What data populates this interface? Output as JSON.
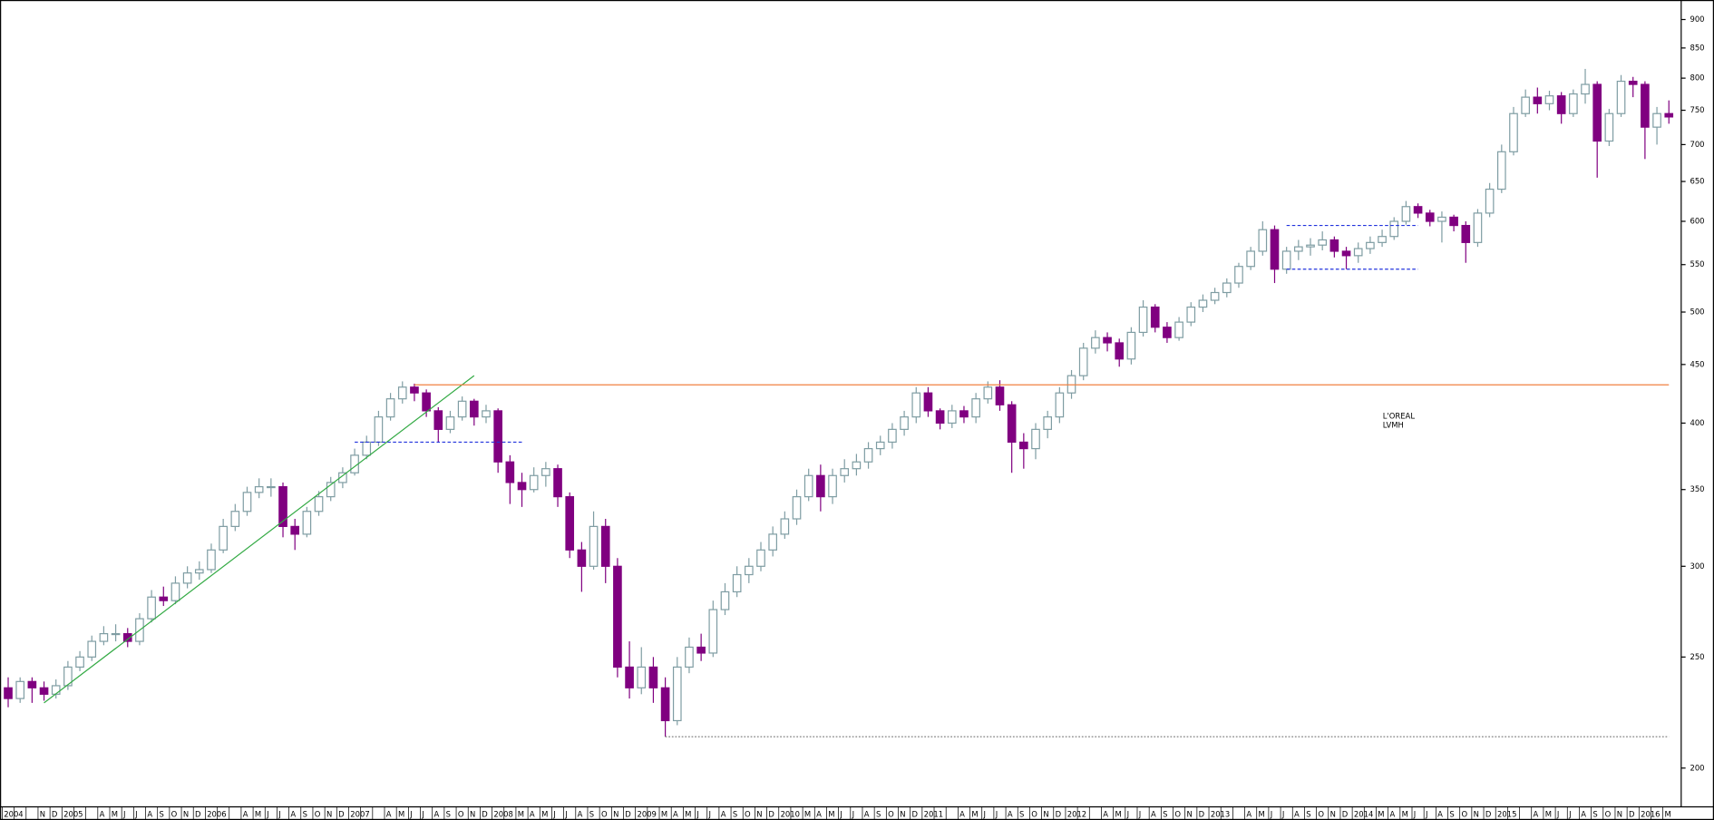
{
  "chart_data": {
    "type": "candlestick",
    "title_lines": [
      "L'OREAL",
      "LVMH"
    ],
    "categories": [
      "2004",
      null,
      null,
      "N",
      "D",
      "2005",
      null,
      null,
      "A",
      "M",
      "J",
      "J",
      "A",
      "S",
      "O",
      "N",
      "D",
      "2006",
      null,
      null,
      "A",
      "M",
      "J",
      "J",
      "A",
      "S",
      "O",
      "N",
      "D",
      "2007",
      null,
      null,
      "A",
      "M",
      "J",
      "J",
      "A",
      "S",
      "O",
      "N",
      "D",
      "2008",
      null,
      "M",
      "A",
      "M",
      "J",
      "J",
      "A",
      "S",
      "O",
      "N",
      "D",
      "2009",
      null,
      "M",
      "A",
      "M",
      "J",
      "J",
      "A",
      "S",
      "O",
      "N",
      "D",
      "2010",
      null,
      "M",
      "A",
      "M",
      "J",
      "J",
      "A",
      "S",
      "O",
      "N",
      "D",
      "2011",
      null,
      null,
      "A",
      "M",
      "J",
      "J",
      "A",
      "S",
      "O",
      "N",
      "D",
      "2012",
      null,
      null,
      "A",
      "M",
      "J",
      "J",
      "A",
      "S",
      "O",
      "N",
      "D",
      "2013",
      null,
      null,
      "A",
      "M",
      "J",
      "J",
      "A",
      "S",
      "O",
      "N",
      "D",
      "2014",
      null,
      "M",
      "A",
      "M",
      "J",
      "J",
      "A",
      "S",
      "O",
      "N",
      "D",
      "2015",
      null,
      null,
      "A",
      "M",
      "J",
      "J",
      "A",
      "S",
      "O",
      "N",
      "D",
      "2016",
      null,
      "M"
    ],
    "open": [
      235,
      230,
      238,
      235,
      232,
      236,
      245,
      250,
      258,
      262,
      262,
      258,
      270,
      282,
      280,
      290,
      296,
      298,
      310,
      325,
      335,
      348,
      352,
      352,
      325,
      320,
      335,
      345,
      355,
      362,
      375,
      385,
      405,
      420,
      430,
      425,
      410,
      395,
      405,
      418,
      405,
      410,
      370,
      355,
      350,
      360,
      365,
      345,
      310,
      300,
      325,
      300,
      245,
      235,
      245,
      235,
      220,
      245,
      255,
      252,
      275,
      285,
      295,
      300,
      310,
      320,
      330,
      345,
      360,
      345,
      360,
      365,
      370,
      380,
      385,
      395,
      405,
      425,
      410,
      400,
      410,
      405,
      420,
      430,
      415,
      385,
      380,
      395,
      405,
      425,
      440,
      465,
      475,
      470,
      455,
      480,
      505,
      485,
      475,
      490,
      505,
      512,
      520,
      530,
      548,
      565,
      590,
      545,
      565,
      570,
      572,
      578,
      565,
      560,
      568,
      575,
      582,
      600,
      618,
      610,
      600,
      605,
      595,
      575,
      610,
      640,
      690,
      745,
      770,
      760,
      772,
      745,
      775,
      790,
      705,
      745,
      795,
      790,
      725,
      745
    ],
    "high": [
      240,
      240,
      240,
      238,
      239,
      248,
      253,
      261,
      266,
      267,
      265,
      273,
      286,
      288,
      294,
      300,
      303,
      314,
      330,
      340,
      352,
      358,
      358,
      355,
      330,
      338,
      349,
      359,
      366,
      380,
      390,
      410,
      425,
      435,
      433,
      428,
      413,
      410,
      422,
      420,
      415,
      412,
      375,
      362,
      366,
      370,
      368,
      348,
      315,
      335,
      330,
      305,
      258,
      255,
      250,
      240,
      250,
      260,
      262,
      280,
      290,
      300,
      305,
      315,
      325,
      335,
      350,
      365,
      368,
      365,
      372,
      376,
      385,
      390,
      400,
      410,
      430,
      430,
      412,
      415,
      414,
      425,
      435,
      436,
      418,
      392,
      400,
      410,
      430,
      445,
      470,
      482,
      480,
      474,
      485,
      512,
      508,
      490,
      495,
      510,
      518,
      525,
      535,
      552,
      570,
      600,
      595,
      570,
      578,
      580,
      588,
      582,
      570,
      575,
      582,
      590,
      605,
      625,
      622,
      614,
      612,
      608,
      600,
      615,
      648,
      700,
      755,
      782,
      785,
      780,
      778,
      782,
      815,
      795,
      752,
      805,
      802,
      795,
      755,
      765
    ],
    "low": [
      226,
      228,
      228,
      229,
      230,
      234,
      243,
      248,
      256,
      258,
      255,
      256,
      268,
      277,
      278,
      287,
      292,
      296,
      308,
      322,
      332,
      344,
      345,
      318,
      310,
      318,
      332,
      342,
      351,
      360,
      372,
      382,
      402,
      416,
      418,
      405,
      385,
      392,
      402,
      398,
      400,
      362,
      340,
      338,
      348,
      352,
      338,
      305,
      285,
      298,
      290,
      240,
      230,
      232,
      228,
      213,
      218,
      242,
      248,
      250,
      272,
      282,
      290,
      297,
      306,
      317,
      326,
      342,
      335,
      340,
      355,
      360,
      365,
      375,
      380,
      390,
      400,
      405,
      395,
      396,
      400,
      400,
      416,
      410,
      362,
      365,
      372,
      388,
      400,
      420,
      436,
      460,
      462,
      448,
      450,
      476,
      480,
      470,
      472,
      486,
      500,
      508,
      515,
      525,
      544,
      560,
      530,
      540,
      555,
      560,
      566,
      558,
      545,
      552,
      562,
      570,
      578,
      596,
      604,
      594,
      575,
      588,
      552,
      570,
      605,
      635,
      685,
      740,
      745,
      750,
      730,
      740,
      760,
      655,
      698,
      740,
      770,
      680,
      700,
      730
    ],
    "close": [
      230,
      238,
      235,
      232,
      236,
      245,
      250,
      258,
      262,
      262,
      258,
      270,
      282,
      280,
      290,
      296,
      298,
      310,
      325,
      335,
      348,
      352,
      352,
      325,
      320,
      335,
      345,
      355,
      362,
      375,
      385,
      405,
      420,
      430,
      425,
      410,
      395,
      405,
      418,
      405,
      410,
      370,
      355,
      350,
      360,
      365,
      345,
      310,
      300,
      325,
      300,
      245,
      235,
      245,
      235,
      220,
      245,
      255,
      252,
      275,
      285,
      295,
      300,
      310,
      320,
      330,
      345,
      360,
      345,
      360,
      365,
      370,
      380,
      385,
      395,
      405,
      425,
      410,
      400,
      410,
      405,
      420,
      430,
      415,
      385,
      380,
      395,
      405,
      425,
      440,
      465,
      475,
      470,
      455,
      480,
      505,
      485,
      475,
      490,
      505,
      512,
      520,
      530,
      548,
      565,
      590,
      545,
      565,
      570,
      572,
      578,
      565,
      560,
      568,
      575,
      582,
      600,
      618,
      610,
      600,
      605,
      595,
      575,
      610,
      640,
      690,
      745,
      770,
      760,
      772,
      745,
      775,
      790,
      705,
      745,
      795,
      790,
      725,
      745,
      740
    ],
    "up_color": "#7f9da3",
    "down_color": "#800080",
    "log_scale": true,
    "ylim": [
      185,
      936
    ],
    "yticks": [
      200,
      250,
      300,
      350,
      400,
      450,
      500,
      550,
      600,
      650,
      700,
      750,
      800,
      850,
      900
    ],
    "lines": [
      {
        "start": 3,
        "end": 39,
        "values": [
          228,
          440
        ],
        "color": "#33aa44",
        "style": "solid"
      },
      {
        "start": 34,
        "end": 139,
        "values": [
          432,
          432
        ],
        "color": "#f08040",
        "style": "solid"
      },
      {
        "start": 29,
        "end": 43,
        "values": [
          385,
          385
        ],
        "color": "#2233dd",
        "style": "dashed"
      },
      {
        "start": 107,
        "end": 118,
        "values": [
          595,
          595
        ],
        "color": "#2233dd",
        "style": "dashed"
      },
      {
        "start": 107,
        "end": 118,
        "values": [
          545,
          545
        ],
        "color": "#2233dd",
        "style": "dashed"
      },
      {
        "start": 55,
        "end": 139,
        "values": [
          213,
          213
        ],
        "color": "#777777",
        "style": "dotted"
      }
    ]
  }
}
